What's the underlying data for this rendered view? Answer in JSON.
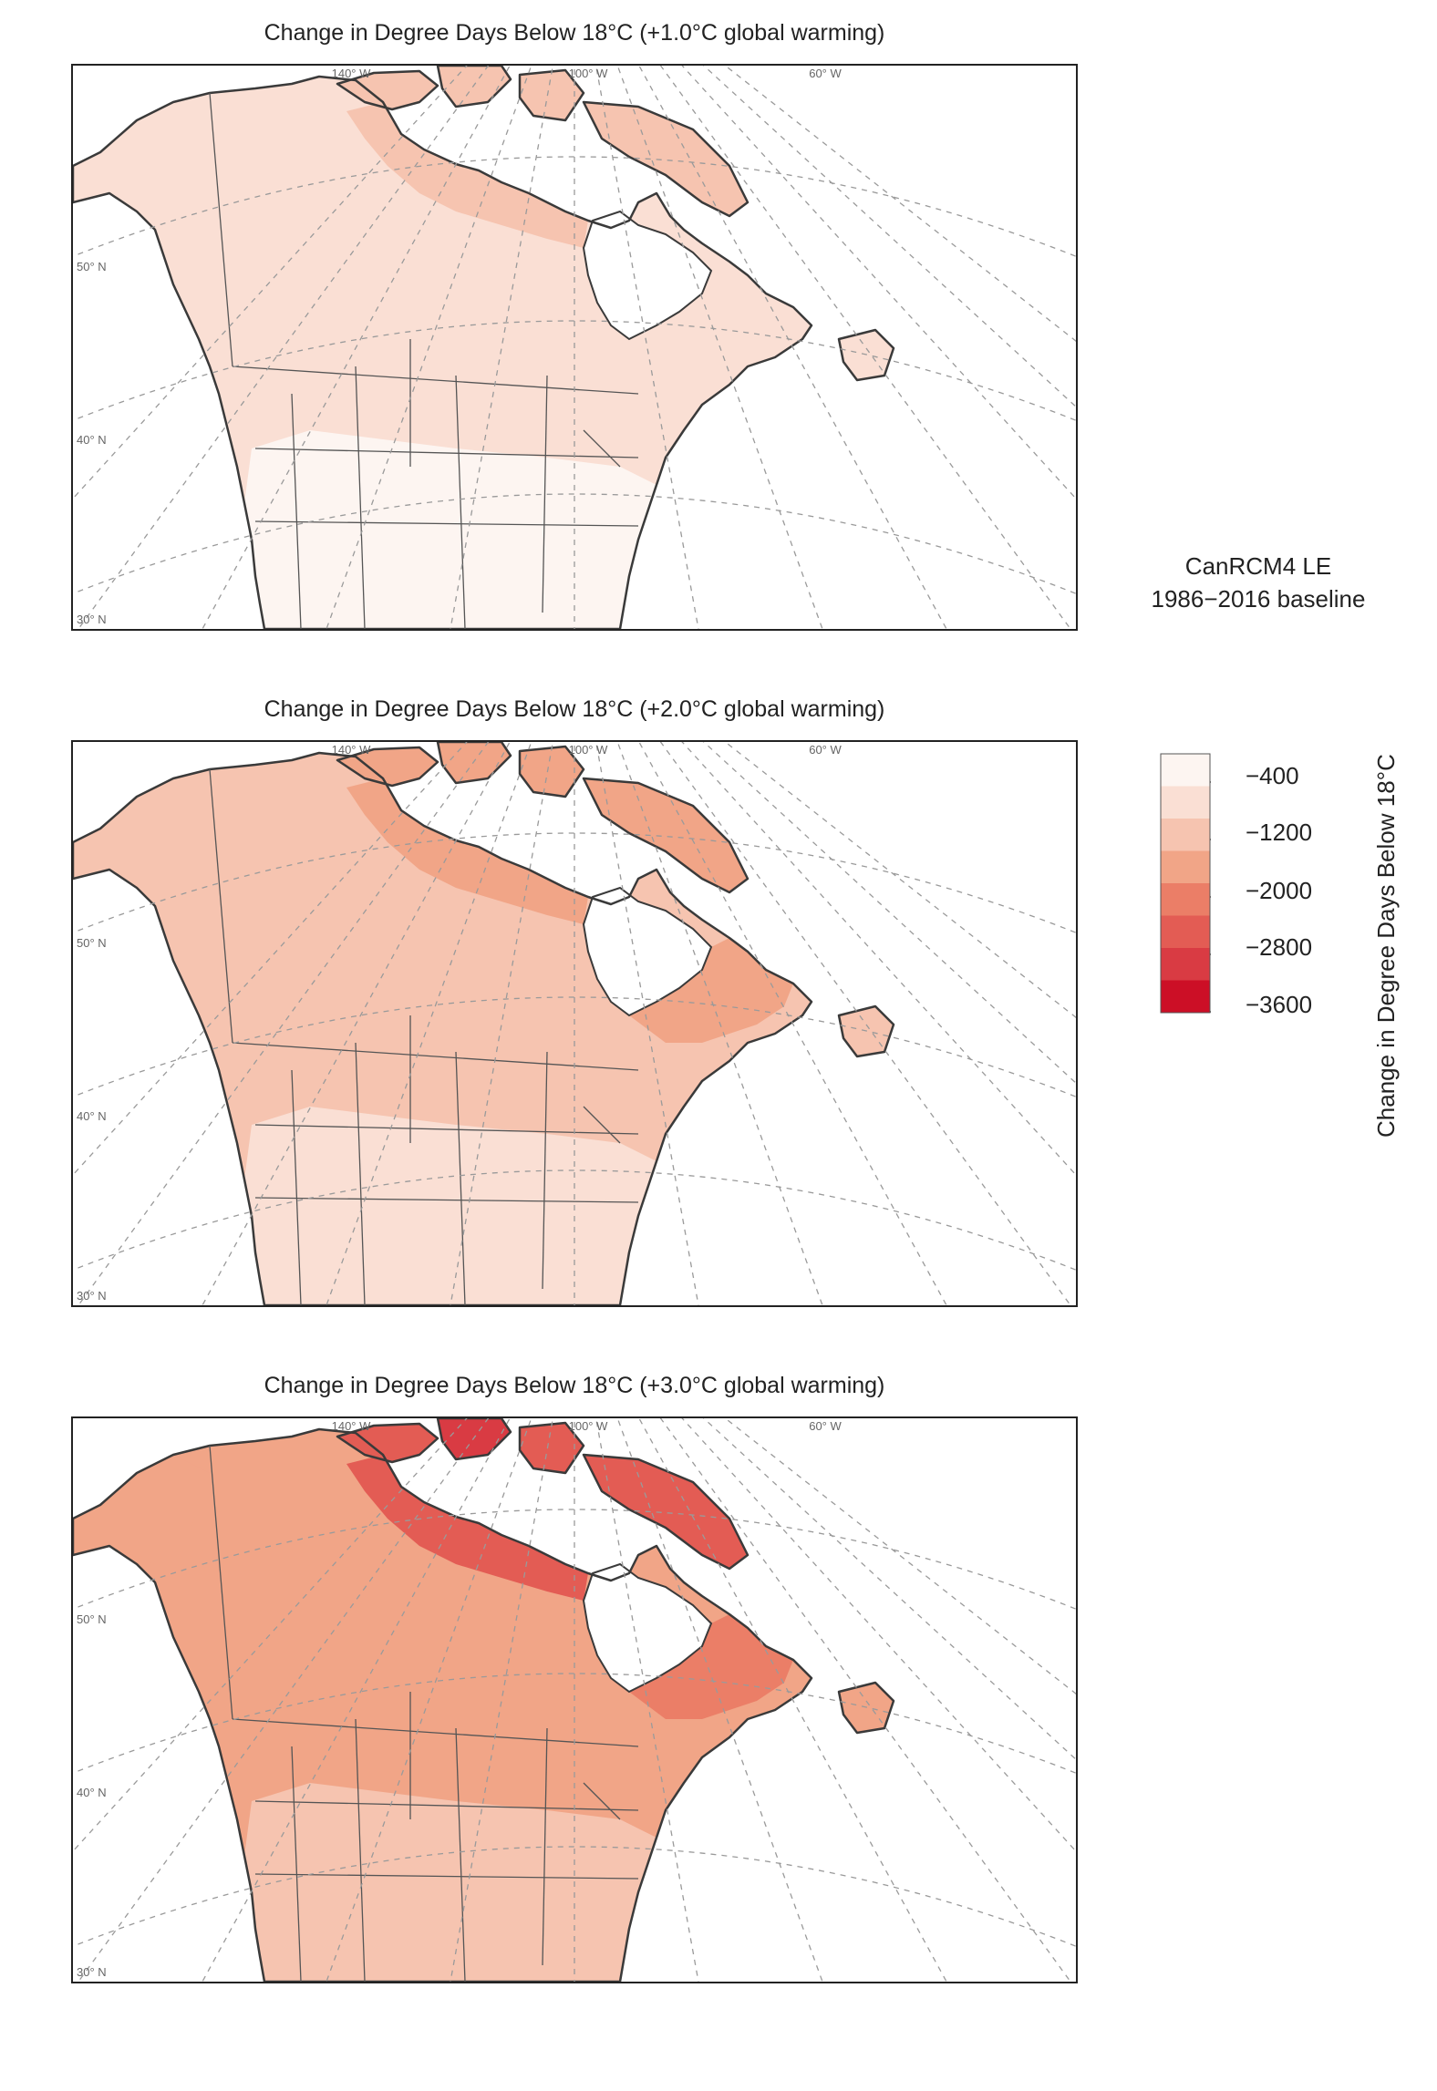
{
  "panels": [
    {
      "title": "Change in Degree Days Below 18°C (+1.0°C global warming)",
      "intensity": 1
    },
    {
      "title": "Change in Degree Days Below 18°C (+2.0°C global warming)",
      "intensity": 2
    },
    {
      "title": "Change in Degree Days Below 18°C (+3.0°C global warming)",
      "intensity": 3
    }
  ],
  "graticule_labels": {
    "lon": [
      "140° W",
      "100° W",
      "60° W"
    ],
    "lat": [
      "50° N",
      "40° N",
      "30° N"
    ]
  },
  "legend": {
    "model": "CanRCM4 LE",
    "baseline": "1986−2016 baseline",
    "axis_title": "Change in Degree Days Below 18°C",
    "tick_labels": [
      "−400",
      "−1200",
      "−2000",
      "−2800",
      "−3600"
    ],
    "colors": [
      "#fdf5f1",
      "#fadfd4",
      "#f6c4b0",
      "#f1a587",
      "#eb7e67",
      "#e35c54",
      "#d93b43",
      "#cc0f26"
    ]
  },
  "colors": {
    "ocean": "#ffffff",
    "land_outline": "#3a3a3a",
    "graticule": "#9a9a9a"
  }
}
